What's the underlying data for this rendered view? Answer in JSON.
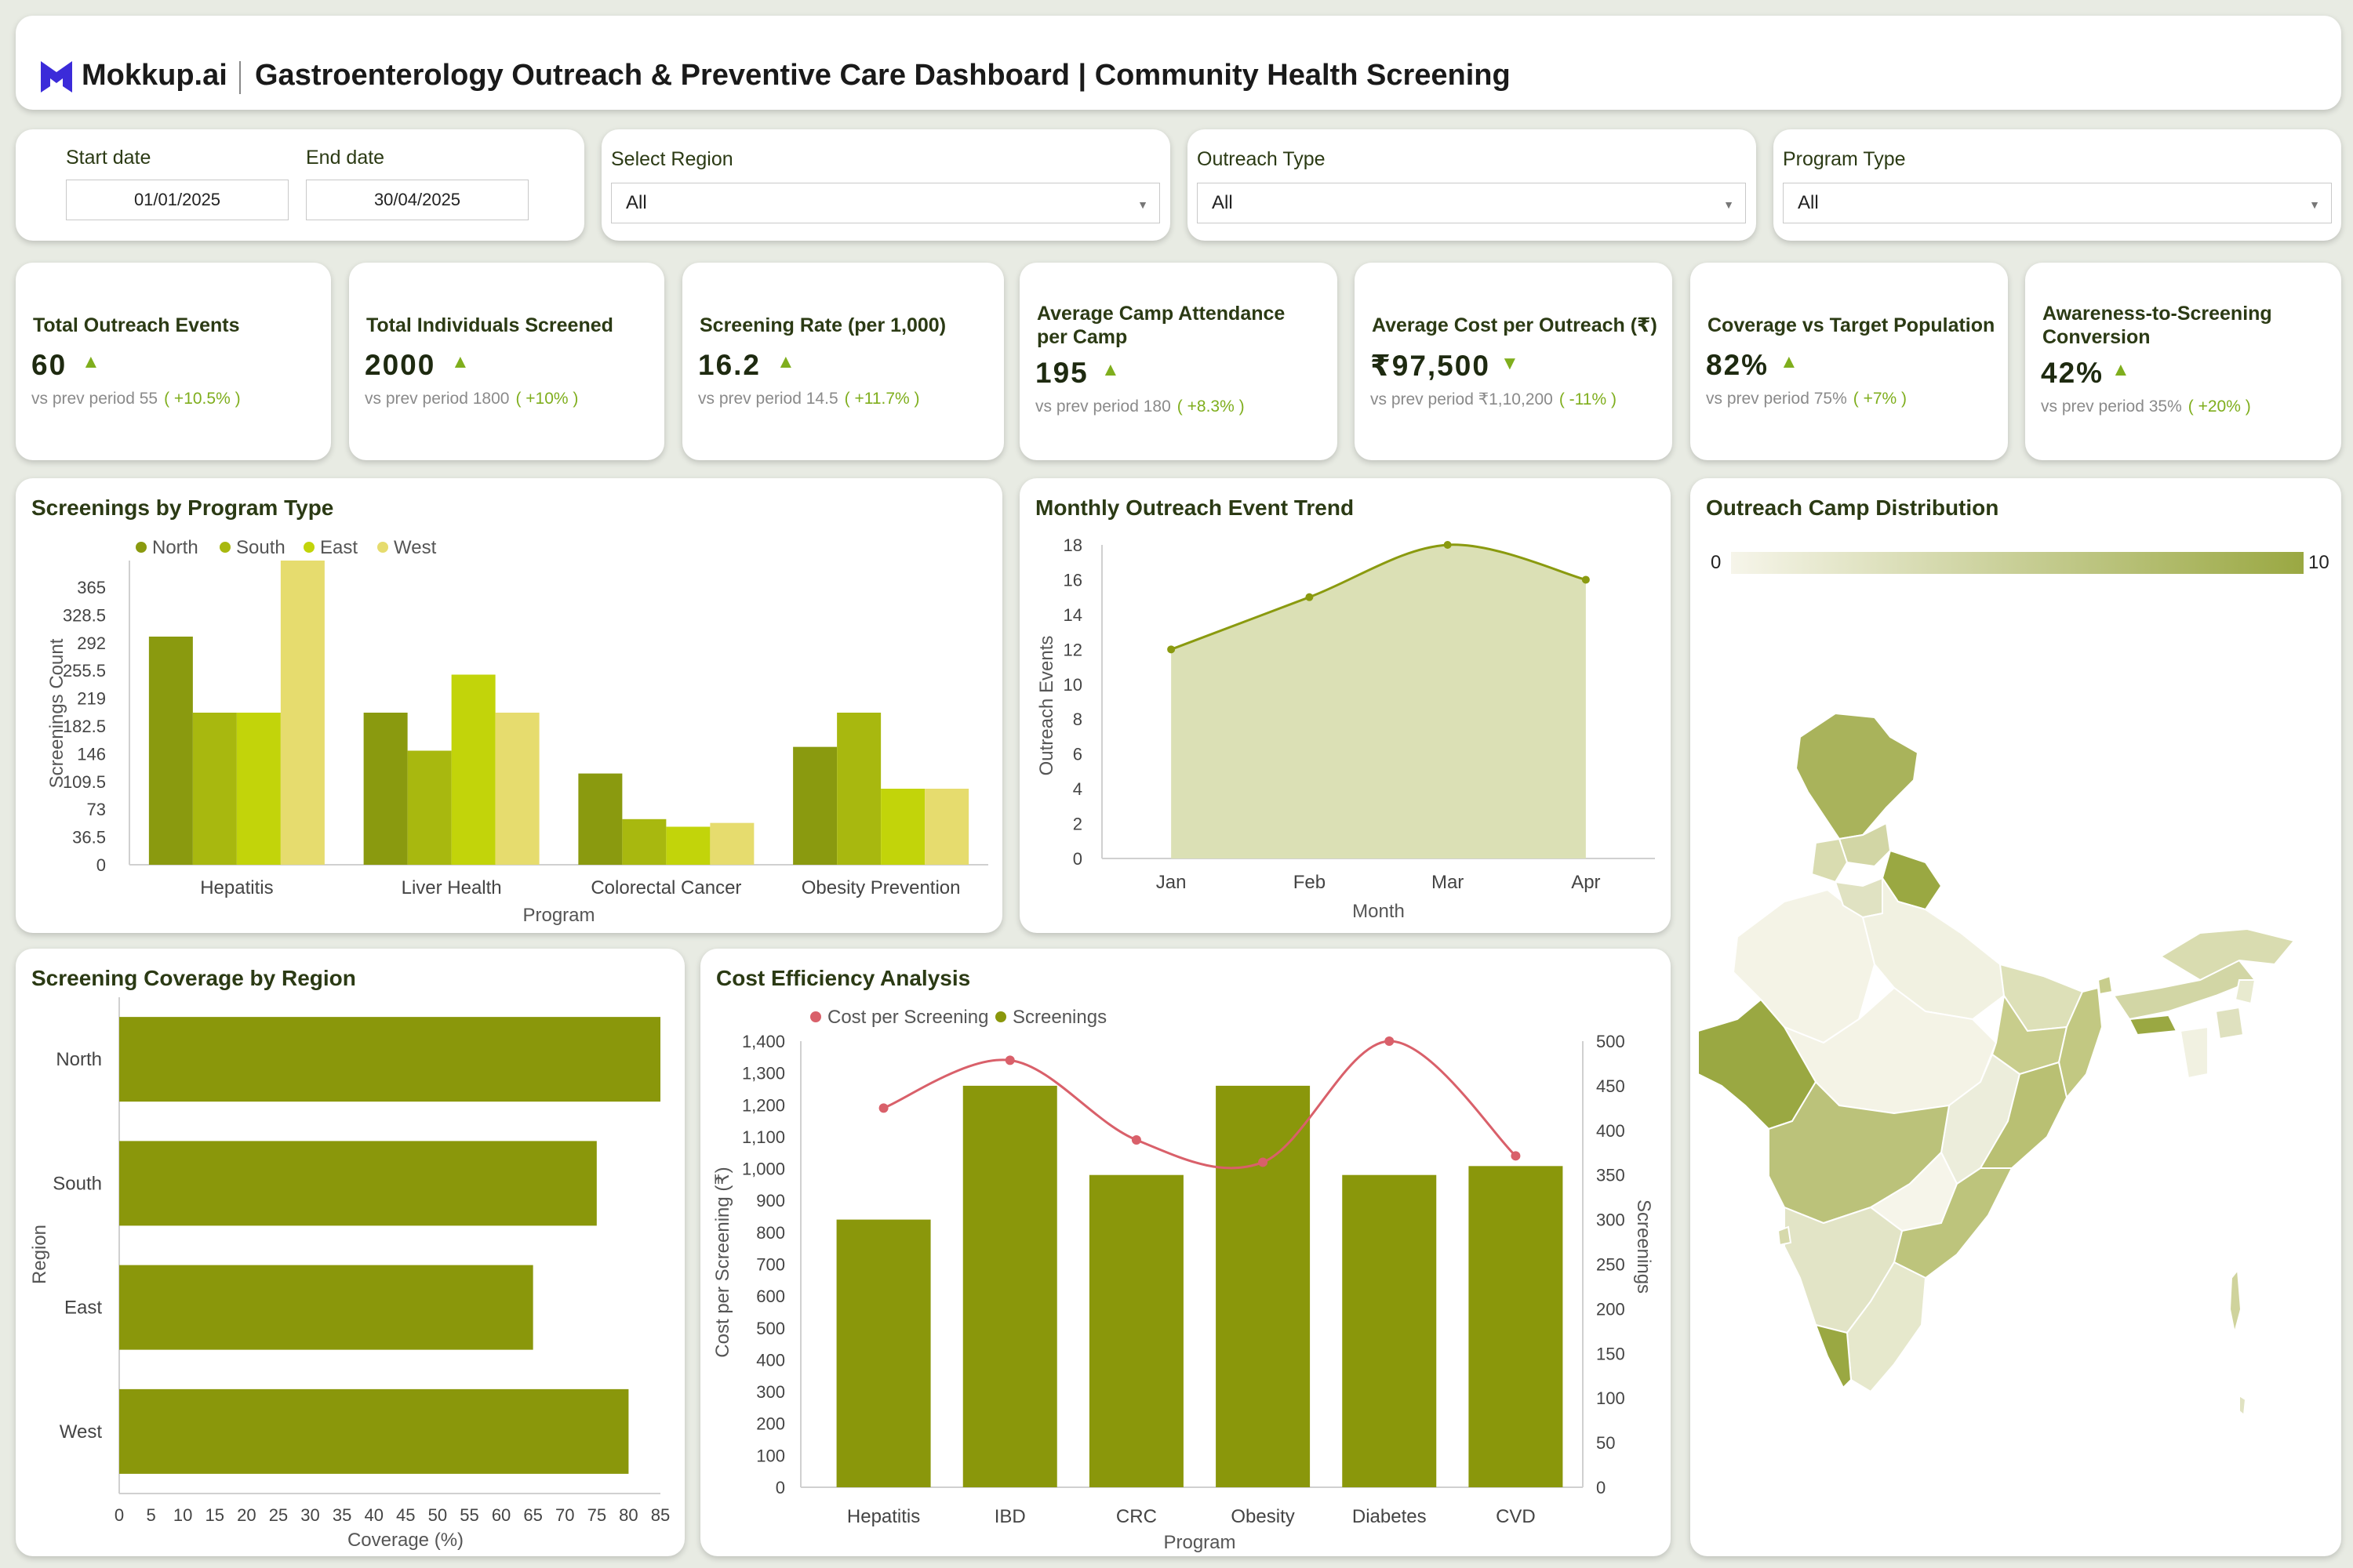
{
  "header": {
    "brand": "Mokkup.ai",
    "title": "Gastroenterology Outreach & Preventive Care Dashboard | Community Health Screening"
  },
  "filters": {
    "start_label": "Start date",
    "start_value": "01/01/2025",
    "end_label": "End date",
    "end_value": "30/04/2025",
    "region_label": "Select Region",
    "region_value": "All",
    "outreach_label": "Outreach Type",
    "outreach_value": "All",
    "program_label": "Program Type",
    "program_value": "All"
  },
  "kpis": [
    {
      "title": "Total Outreach Events",
      "value": "60",
      "trend": "up",
      "prev_label": "vs prev period",
      "prev": "55",
      "change": "( +10.5% )"
    },
    {
      "title": "Total Individuals Screened",
      "value": "2000",
      "trend": "up",
      "prev_label": "vs prev period",
      "prev": "1800",
      "change": "( +10% )"
    },
    {
      "title": "Screening Rate (per 1,000)",
      "value": "16.2",
      "trend": "up",
      "prev_label": "vs prev period",
      "prev": "14.5",
      "change": "( +11.7% )"
    },
    {
      "title": "Average Camp Attendance per Camp",
      "value": "195",
      "trend": "up",
      "prev_label": "vs prev period",
      "prev": "180",
      "change": "( +8.3% )"
    },
    {
      "title": "Average Cost per Outreach (₹)",
      "value": "₹97,500",
      "trend": "down",
      "prev_label": "vs prev period",
      "prev": "₹1,10,200",
      "change": "( -11% )"
    },
    {
      "title": "Coverage vs Target Population",
      "value": "82%",
      "trend": "up",
      "prev_label": "vs prev period",
      "prev": "75%",
      "change": "( +7% )"
    },
    {
      "title": "Awareness-to-Screening Conversion",
      "value": "42%",
      "trend": "up",
      "prev_label": "vs prev period",
      "prev": "35%",
      "change": "( +20% )"
    }
  ],
  "panels": {
    "program": "Screenings by Program Type",
    "monthly": "Monthly Outreach Event Trend",
    "map": "Outreach Camp Distribution",
    "region": "Screening Coverage by Region",
    "cost": "Cost Efficiency Analysis"
  },
  "map": {
    "legend_min": "0",
    "legend_max": "10",
    "color_low": "#f4f3e6",
    "color_high": "#9aa842"
  },
  "chart_data": [
    {
      "id": "program",
      "type": "bar",
      "categories": [
        "Hepatitis",
        "Liver Health",
        "Colorectal Cancer",
        "Obesity Prevention"
      ],
      "series": [
        {
          "name": "North",
          "color": "#8a9a0f",
          "values": [
            300,
            200,
            120,
            155
          ]
        },
        {
          "name": "South",
          "color": "#a8b80f",
          "values": [
            200,
            150,
            60,
            200
          ]
        },
        {
          "name": "East",
          "color": "#c2d40a",
          "values": [
            200,
            250,
            50,
            100
          ]
        },
        {
          "name": "West",
          "color": "#e6dc6e",
          "values": [
            400,
            200,
            55,
            100
          ]
        }
      ],
      "yticks": [
        "0",
        "36.5",
        "73",
        "109.5",
        "146",
        "182.5",
        "219",
        "255.5",
        "292",
        "328.5",
        "365"
      ],
      "ylim": [
        0,
        400
      ],
      "xlabel": "Program",
      "ylabel": "Screenings Count",
      "legend": "top-left"
    },
    {
      "id": "monthly",
      "type": "area",
      "x": [
        "Jan",
        "Feb",
        "Mar",
        "Apr"
      ],
      "values": [
        12,
        15,
        18,
        16
      ],
      "color": "#8a9a0f",
      "fill": "#dbe0b5",
      "yticks": [
        "0",
        "2",
        "4",
        "6",
        "8",
        "10",
        "12",
        "14",
        "16",
        "18"
      ],
      "ylim": [
        0,
        18
      ],
      "xlabel": "Month",
      "ylabel": "Outreach Events"
    },
    {
      "id": "region",
      "type": "bar",
      "orientation": "horizontal",
      "categories": [
        "North",
        "South",
        "East",
        "West"
      ],
      "values": [
        85,
        75,
        65,
        80
      ],
      "color": "#8a970b",
      "xticks": [
        "0",
        "5",
        "10",
        "15",
        "20",
        "25",
        "30",
        "35",
        "40",
        "45",
        "50",
        "55",
        "60",
        "65",
        "70",
        "75",
        "80",
        "85"
      ],
      "xlim": [
        0,
        85
      ],
      "xlabel": "Coverage (%)",
      "ylabel": "Region"
    },
    {
      "id": "cost",
      "type": "bar",
      "categories": [
        "Hepatitis",
        "IBD",
        "CRC",
        "Obesity",
        "Diabetes",
        "CVD"
      ],
      "series": [
        {
          "name": "Cost per Screening",
          "type": "line",
          "axis": "left",
          "color": "#d9606a",
          "values": [
            1190,
            1340,
            1090,
            1020,
            1400,
            1040
          ]
        },
        {
          "name": "Screenings",
          "type": "bar",
          "axis": "right",
          "color": "#8a970b",
          "values": [
            300,
            450,
            350,
            450,
            350,
            360
          ]
        }
      ],
      "yticks_left": [
        "0",
        "100",
        "200",
        "300",
        "400",
        "500",
        "600",
        "700",
        "800",
        "900",
        "1,000",
        "1,100",
        "1,200",
        "1,300",
        "1,400"
      ],
      "ylim_left": [
        0,
        1400
      ],
      "yticks_right": [
        "0",
        "50",
        "100",
        "150",
        "200",
        "250",
        "300",
        "350",
        "400",
        "450",
        "500"
      ],
      "ylim_right": [
        0,
        500
      ],
      "xlabel": "Program",
      "ylabel_left": "Cost per Screening (₹)",
      "ylabel_right": "Screenings",
      "legend": "top-left"
    }
  ]
}
